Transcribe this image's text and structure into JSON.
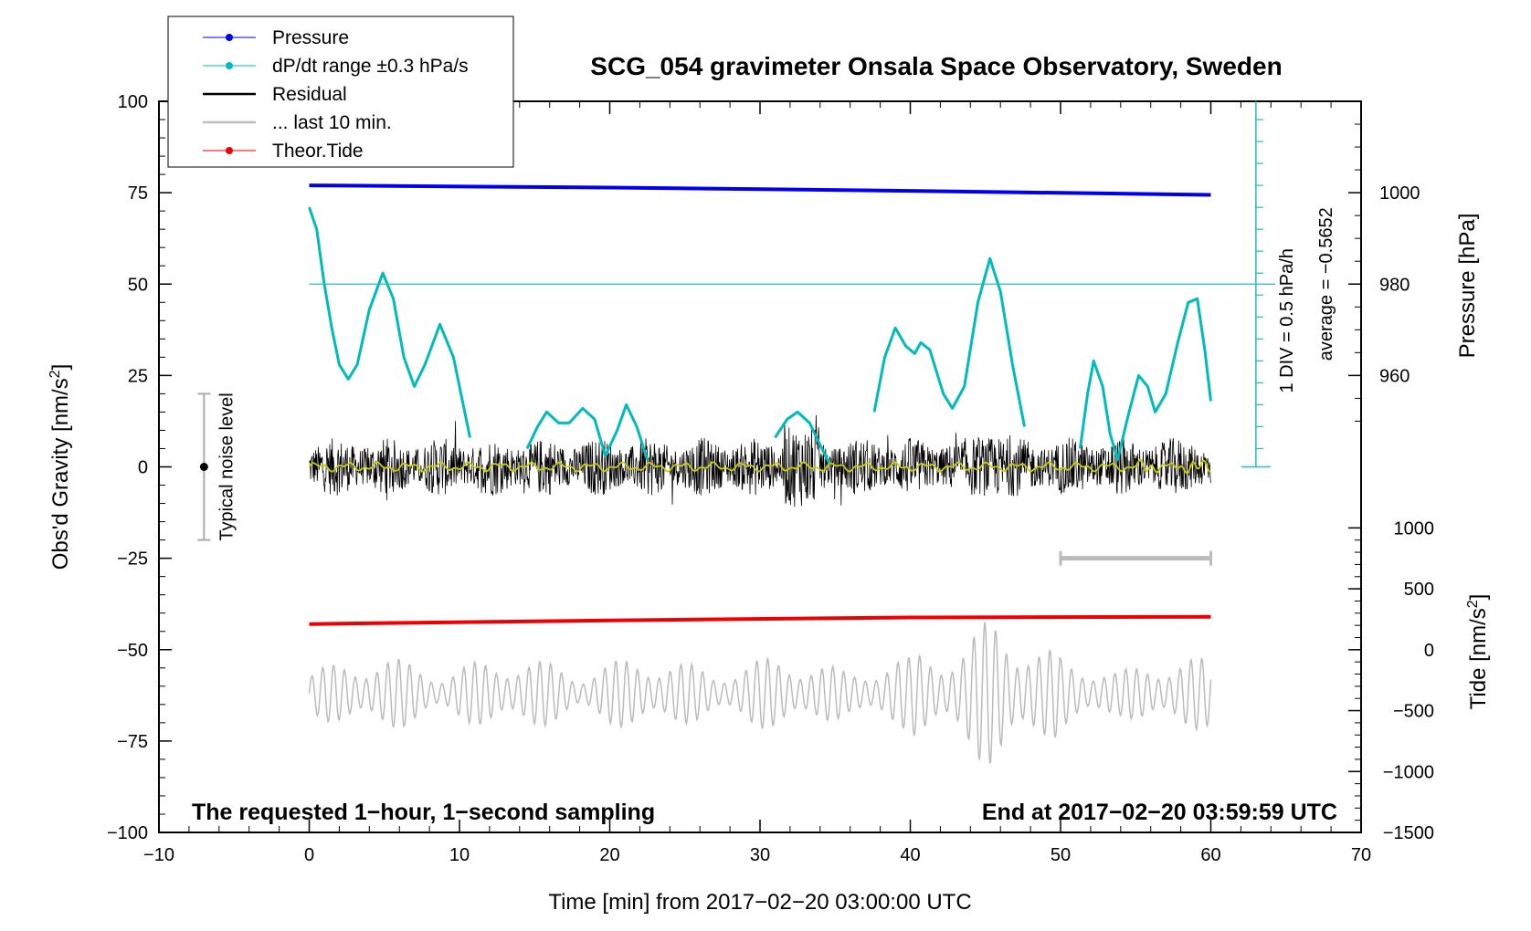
{
  "chart_data": {
    "type": "line",
    "title": "SCG_054 gravimeter Onsala Space Observatory, Sweden",
    "xlabel": "Time [min] from 2017−02−20 03:00:00 UTC",
    "ylabel_left": "Obs'd Gravity [nm/s",
    "ylabel_left_sup": "2",
    "ylabel_left_end": "]",
    "ylabel_pressure": "Pressure [hPa]",
    "ylabel_tide": "Tide [nm/s",
    "ylabel_tide_sup": "2",
    "ylabel_tide_end": "]",
    "xlim": [
      -10,
      70
    ],
    "ylim": [
      -100,
      100
    ],
    "x_ticks": [
      {
        "v": -10,
        "label": "−10"
      },
      {
        "v": 0,
        "label": "0"
      },
      {
        "v": 10,
        "label": "10"
      },
      {
        "v": 20,
        "label": "20"
      },
      {
        "v": 30,
        "label": "30"
      },
      {
        "v": 40,
        "label": "40"
      },
      {
        "v": 50,
        "label": "50"
      },
      {
        "v": 60,
        "label": "60"
      },
      {
        "v": 70,
        "label": "70"
      }
    ],
    "y_ticks": [
      {
        "v": 100,
        "label": "100"
      },
      {
        "v": 75,
        "label": "75"
      },
      {
        "v": 50,
        "label": "50"
      },
      {
        "v": 25,
        "label": "25"
      },
      {
        "v": 0,
        "label": "0"
      },
      {
        "v": -25,
        "label": "−25"
      },
      {
        "v": -50,
        "label": "−50"
      },
      {
        "v": -75,
        "label": "−75"
      },
      {
        "v": -100,
        "label": "−100"
      }
    ],
    "pressure_axis": {
      "ticks": [
        {
          "v": 1000,
          "label": "1000"
        },
        {
          "v": 980,
          "label": "980"
        },
        {
          "v": 960,
          "label": "960"
        }
      ],
      "gravity_equivalent": [
        [
          1000,
          75
        ],
        [
          980,
          50
        ],
        [
          960,
          25
        ]
      ]
    },
    "tide_axis": {
      "ticks": [
        {
          "v": 1000,
          "label": "1000"
        },
        {
          "v": 500,
          "label": "500"
        },
        {
          "v": 0,
          "label": "0"
        },
        {
          "v": -500,
          "label": "−500"
        },
        {
          "v": -1000,
          "label": "−1000"
        },
        {
          "v": -1500,
          "label": "−1500"
        }
      ],
      "gravity_equivalent": [
        [
          1000,
          -16.7
        ],
        [
          -1500,
          -100
        ]
      ]
    },
    "legend": [
      {
        "label": "Pressure",
        "color": "#0000ee",
        "marker": true
      },
      {
        "label": "dP/dt range ±0.3 hPa/s",
        "color": "#00bbbb",
        "marker": true
      },
      {
        "label": "Residual",
        "color": "#000000",
        "marker": false
      },
      {
        "label": "... last 10 min.",
        "color": "#bbbbbb",
        "marker": false
      },
      {
        "label": "Theor.Tide",
        "color": "#ee0000",
        "marker": true
      }
    ],
    "noise_level": {
      "label": "Typical noise level",
      "x": -7,
      "low": -20,
      "high": 20
    },
    "dpdt_scale": {
      "label_div": "1 DIV = 0.5 hPa/h",
      "label_avg": "average = −0.5652",
      "x": 63,
      "bottom": 0,
      "top": 100,
      "ref_line": 50
    },
    "last10_bracket": {
      "x_start": 50,
      "x_end": 60,
      "y": -25
    },
    "footer_left": "The requested 1−hour, 1−second sampling",
    "footer_right": "End at 2017−02−20 03:59:59 UTC",
    "series": [
      {
        "name": "Pressure",
        "color": "#0000ee",
        "width": 4,
        "x": [
          0,
          20,
          40,
          60
        ],
        "y": [
          77,
          76.4,
          75.5,
          74.4
        ]
      },
      {
        "name": "Theor.Tide",
        "color": "#ee0000",
        "width": 4,
        "x": [
          0,
          20,
          40,
          60
        ],
        "y": [
          -43,
          -42,
          -41.2,
          -41
        ]
      },
      {
        "name": "dP/dt",
        "color": "#00bbbb",
        "width": 3,
        "x": [
          0,
          0.5,
          1,
          1.5,
          2,
          2.6,
          3.2,
          4,
          4.9,
          5.6,
          6.3,
          7,
          7.7,
          8.7,
          9.6,
          10.7
        ],
        "y": [
          71,
          65,
          50,
          38,
          28,
          24,
          28,
          43,
          53,
          46,
          30,
          22,
          28,
          39,
          30,
          8
        ]
      },
      {
        "name": "dP/dt",
        "color": "#00bbbb",
        "width": 3,
        "x": [
          14.5,
          15.2,
          15.8,
          16.6,
          17.3,
          18.2,
          19,
          19.7,
          20.5,
          21.1,
          21.8,
          22.5
        ],
        "y": [
          5,
          11,
          15,
          12,
          12,
          16,
          13,
          3,
          10,
          17,
          11,
          2
        ]
      },
      {
        "name": "dP/dt",
        "color": "#00bbbb",
        "width": 3,
        "x": [
          31,
          31.8,
          32.5,
          33.3,
          34,
          34.6
        ],
        "y": [
          8,
          13,
          15,
          12,
          6,
          1
        ]
      },
      {
        "name": "dP/dt",
        "color": "#00bbbb",
        "width": 3,
        "x": [
          37.6,
          38.3,
          39,
          39.7,
          40.3,
          40.7,
          41.3,
          42.2,
          42.8,
          43.6,
          44.5,
          45.3,
          46,
          46.8,
          47.6
        ],
        "y": [
          15,
          30,
          38,
          33,
          31,
          34,
          32,
          20,
          16,
          22,
          45,
          57,
          48,
          28,
          11
        ]
      },
      {
        "name": "dP/dt",
        "color": "#00bbbb",
        "width": 3,
        "x": [
          51.3,
          51.8,
          52.2,
          52.8,
          53.3,
          53.8,
          54.5,
          55.2,
          55.8,
          56.3,
          57,
          57.8,
          58.5,
          59.1,
          59.6,
          60
        ],
        "y": [
          5,
          20,
          29,
          22,
          9,
          2,
          14,
          25,
          22,
          15,
          20,
          34,
          45,
          46,
          32,
          18
        ]
      }
    ]
  }
}
